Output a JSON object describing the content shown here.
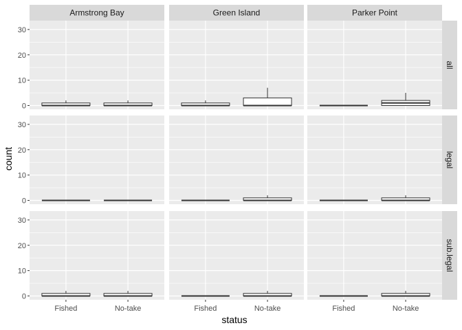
{
  "chart_data": {
    "type": "boxplot",
    "xlabel": "status",
    "ylabel": "count",
    "ylim": [
      -1.5,
      33.5
    ],
    "yticks": [
      0,
      10,
      20,
      30
    ],
    "categories": [
      "Fished",
      "No-take"
    ],
    "columns": [
      "Armstrong Bay",
      "Green Island",
      "Parker Point"
    ],
    "rows": [
      "all",
      "legal",
      "sub.legal"
    ],
    "panels": [
      {
        "row": "all",
        "column": "Armstrong Bay",
        "boxes": [
          {
            "category": "Fished",
            "min": 0,
            "q1": 0,
            "median": 0,
            "q3": 1,
            "max": 2
          },
          {
            "category": "No-take",
            "min": 0,
            "q1": 0,
            "median": 0,
            "q3": 1,
            "max": 2
          }
        ]
      },
      {
        "row": "all",
        "column": "Green Island",
        "boxes": [
          {
            "category": "Fished",
            "min": 0,
            "q1": 0,
            "median": 0,
            "q3": 1,
            "max": 2
          },
          {
            "category": "No-take",
            "min": 0,
            "q1": 0,
            "median": 0,
            "q3": 3,
            "max": 7
          }
        ]
      },
      {
        "row": "all",
        "column": "Parker Point",
        "boxes": [
          {
            "category": "Fished",
            "min": 0,
            "q1": 0,
            "median": 0,
            "q3": 0,
            "max": 0
          },
          {
            "category": "No-take",
            "min": 0,
            "q1": 0,
            "median": 1,
            "q3": 2,
            "max": 5
          }
        ]
      },
      {
        "row": "legal",
        "column": "Armstrong Bay",
        "boxes": [
          {
            "category": "Fished",
            "min": 0,
            "q1": 0,
            "median": 0,
            "q3": 0,
            "max": 0
          },
          {
            "category": "No-take",
            "min": 0,
            "q1": 0,
            "median": 0,
            "q3": 0,
            "max": 0
          }
        ]
      },
      {
        "row": "legal",
        "column": "Green Island",
        "boxes": [
          {
            "category": "Fished",
            "min": 0,
            "q1": 0,
            "median": 0,
            "q3": 0,
            "max": 0
          },
          {
            "category": "No-take",
            "min": 0,
            "q1": 0,
            "median": 0,
            "q3": 1,
            "max": 2
          }
        ]
      },
      {
        "row": "legal",
        "column": "Parker Point",
        "boxes": [
          {
            "category": "Fished",
            "min": 0,
            "q1": 0,
            "median": 0,
            "q3": 0,
            "max": 0
          },
          {
            "category": "No-take",
            "min": 0,
            "q1": 0,
            "median": 0,
            "q3": 1,
            "max": 2
          }
        ]
      },
      {
        "row": "sub.legal",
        "column": "Armstrong Bay",
        "boxes": [
          {
            "category": "Fished",
            "min": 0,
            "q1": 0,
            "median": 0,
            "q3": 1,
            "max": 2
          },
          {
            "category": "No-take",
            "min": 0,
            "q1": 0,
            "median": 0,
            "q3": 1,
            "max": 2
          }
        ]
      },
      {
        "row": "sub.legal",
        "column": "Green Island",
        "boxes": [
          {
            "category": "Fished",
            "min": 0,
            "q1": 0,
            "median": 0,
            "q3": 0,
            "max": 0
          },
          {
            "category": "No-take",
            "min": 0,
            "q1": 0,
            "median": 0,
            "q3": 1,
            "max": 2
          }
        ]
      },
      {
        "row": "sub.legal",
        "column": "Parker Point",
        "boxes": [
          {
            "category": "Fished",
            "min": 0,
            "q1": 0,
            "median": 0,
            "q3": 0,
            "max": 0
          },
          {
            "category": "No-take",
            "min": 0,
            "q1": 0,
            "median": 0,
            "q3": 1,
            "max": 2
          }
        ]
      }
    ],
    "grid": true,
    "legend": "none"
  },
  "colors": {
    "panel_background": "#ebebeb",
    "strip_background": "#d9d9d9",
    "grid_major": "#ffffff",
    "box_fill": "#ffffff",
    "box_stroke": "#333333"
  }
}
